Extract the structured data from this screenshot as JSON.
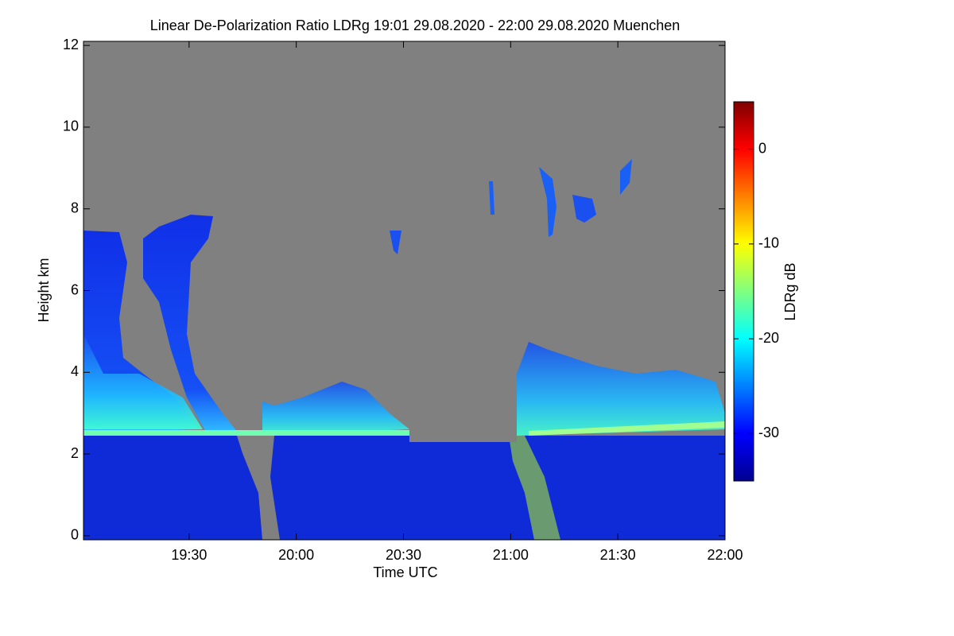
{
  "chart_data": {
    "type": "heatmap",
    "title": "Linear De-Polarization Ratio LDRg   19:01 29.08.2020 - 22:00 29.08.2020 Muenchen",
    "xlabel": "Time UTC",
    "ylabel": "Height km",
    "xlim": [
      "19:01",
      "22:00"
    ],
    "xticks": [
      "19:30",
      "20:00",
      "20:30",
      "21:00",
      "21:30",
      "22:00"
    ],
    "ylim": [
      -0.1,
      12.1
    ],
    "yticks": [
      0,
      2,
      4,
      6,
      8,
      10,
      12
    ],
    "colorbar": {
      "label": "LDRg dB",
      "lim": [
        -35,
        5
      ],
      "ticks": [
        0,
        -10,
        -20,
        -30
      ],
      "colormap": "jet"
    },
    "no_data_color": "#808080"
  }
}
